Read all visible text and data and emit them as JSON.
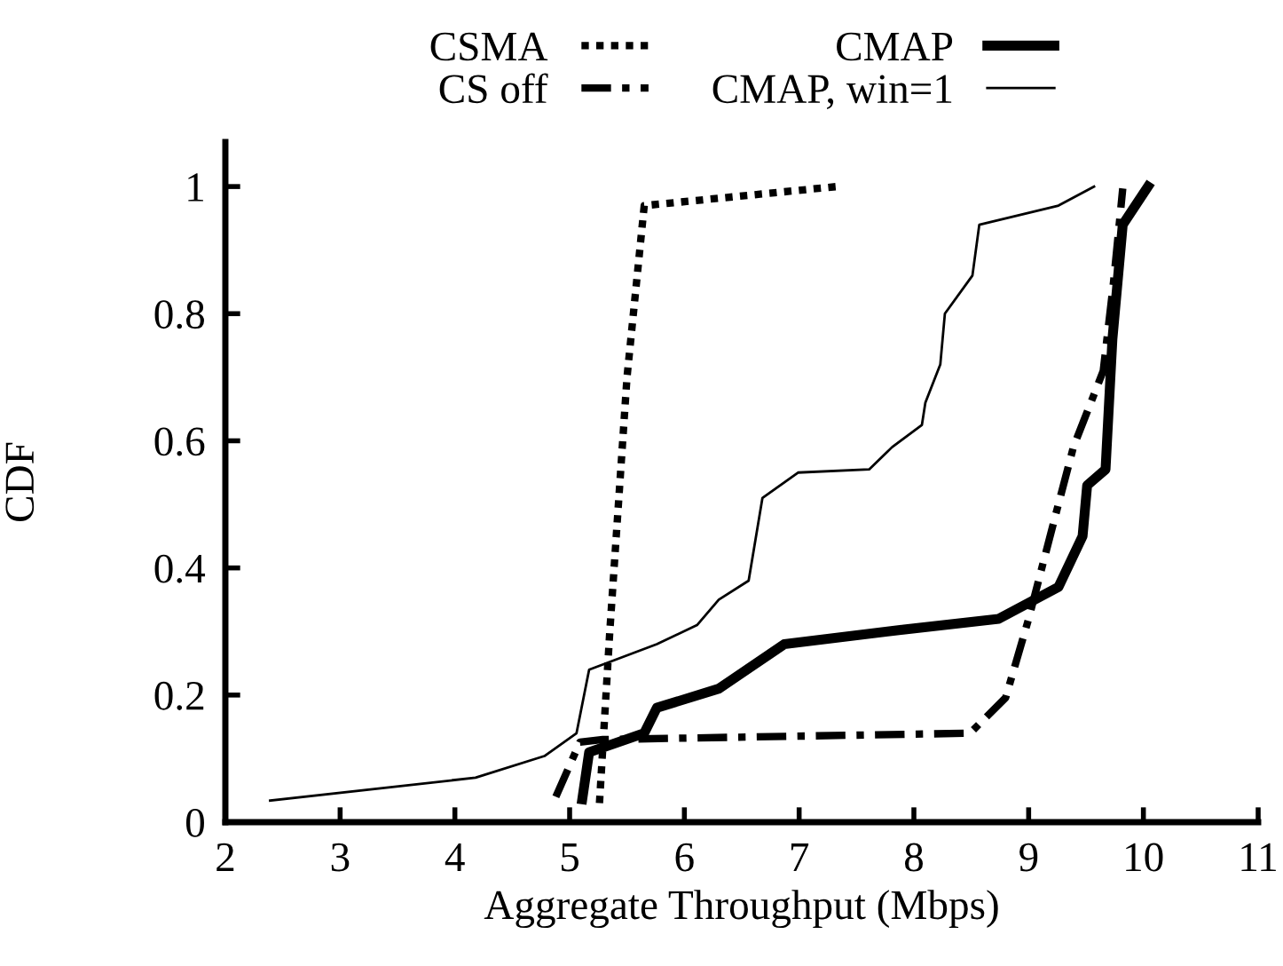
{
  "chart_data": {
    "type": "line",
    "xlabel": "Aggregate Throughput (Mbps)",
    "ylabel": "CDF",
    "xlim": [
      2,
      11
    ],
    "xticks": [
      2,
      3,
      4,
      5,
      6,
      7,
      8,
      9,
      10,
      11
    ],
    "ylim": [
      0,
      1.07
    ],
    "yticks": [
      0,
      0.2,
      0.4,
      0.6,
      0.8,
      1
    ],
    "grid": false,
    "legend": "top",
    "marker": "none",
    "series": [
      {
        "name": "CSMA",
        "color": "#000000",
        "line_style": "dotted",
        "x": [
          5.26,
          5.35,
          5.5,
          5.65,
          7.33
        ],
        "values": [
          0.03,
          0.3,
          0.7,
          0.97,
          1.0
        ]
      },
      {
        "name": "CMAP",
        "color": "#000000",
        "line_style": "solid",
        "x": [
          5.11,
          5.17,
          5.65,
          5.76,
          6.3,
          6.87,
          7.77,
          8.74,
          9.26,
          9.47,
          9.51,
          9.67,
          9.73,
          9.82,
          10.04
        ],
        "values": [
          0.036,
          0.11,
          0.14,
          0.18,
          0.21,
          0.28,
          0.3,
          0.32,
          0.37,
          0.45,
          0.53,
          0.555,
          0.76,
          0.94,
          1.0
        ]
      },
      {
        "name": "CS off",
        "color": "#000000",
        "line_style": "dashdot",
        "x": [
          4.88,
          5.09,
          5.29,
          8.49,
          8.8,
          9.0,
          9.23,
          9.39,
          9.65,
          9.74,
          9.82
        ],
        "values": [
          0.04,
          0.126,
          0.13,
          0.14,
          0.196,
          0.32,
          0.48,
          0.59,
          0.71,
          0.85,
          0.997
        ]
      },
      {
        "name": "CMAP, win=1",
        "color": "#000000",
        "line_style": "solid",
        "x": [
          2.39,
          4.18,
          4.78,
          5.06,
          5.17,
          5.76,
          6.11,
          6.3,
          6.56,
          6.68,
          6.99,
          7.61,
          7.81,
          8.07,
          8.1,
          8.23,
          8.27,
          8.51,
          8.57,
          9.26,
          9.57
        ],
        "values": [
          0.034,
          0.07,
          0.104,
          0.14,
          0.24,
          0.28,
          0.31,
          0.35,
          0.38,
          0.51,
          0.55,
          0.555,
          0.59,
          0.625,
          0.66,
          0.72,
          0.8,
          0.86,
          0.94,
          0.97,
          1.0
        ]
      }
    ]
  }
}
